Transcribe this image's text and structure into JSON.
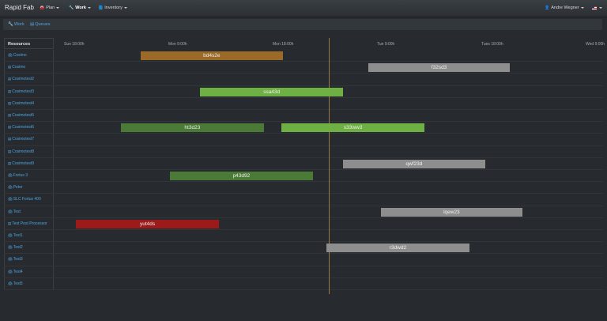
{
  "navbar": {
    "brand": "Rapid Fab",
    "items": [
      {
        "label": "Plan",
        "icon": "car-icon"
      },
      {
        "label": "Work",
        "icon": "wrench-icon"
      },
      {
        "label": "Inventory",
        "icon": "book-icon"
      }
    ],
    "user": "Andre Wegner"
  },
  "tabs": [
    {
      "label": "Work",
      "icon": "wrench-icon"
    },
    {
      "label": "Queues",
      "icon": "list-icon"
    }
  ],
  "gantt": {
    "resources_header": "Resources",
    "time_labels": [
      "Sun 18:00h",
      "Mon 9:00h",
      "Mon 18:00h",
      "Tue 9:00h",
      "Tues 18:00h",
      "Wed 9:00h"
    ],
    "resources": [
      {
        "label": "Cosimo",
        "type": "printer"
      },
      {
        "label": "Cosimo",
        "type": "list"
      },
      {
        "label": "Cosimotest2",
        "type": "list"
      },
      {
        "label": "Cosimotest3",
        "type": "list"
      },
      {
        "label": "Cosimotest4",
        "type": "list"
      },
      {
        "label": "Cosimotest5",
        "type": "list"
      },
      {
        "label": "Cosimotest6",
        "type": "list"
      },
      {
        "label": "Cosimotest7",
        "type": "list"
      },
      {
        "label": "Cosimotest8",
        "type": "list"
      },
      {
        "label": "Cosimotest9",
        "type": "list"
      },
      {
        "label": "Fortus 3",
        "type": "printer"
      },
      {
        "label": "Peter",
        "type": "printer"
      },
      {
        "label": "SLC Fortus 400",
        "type": "printer"
      },
      {
        "label": "Test",
        "type": "printer"
      },
      {
        "label": "Test Post Processor",
        "type": "list"
      },
      {
        "label": "Test1",
        "type": "printer"
      },
      {
        "label": "Test2",
        "type": "printer"
      },
      {
        "label": "Test3",
        "type": "printer"
      },
      {
        "label": "Test4",
        "type": "printer"
      },
      {
        "label": "Test5",
        "type": "printer"
      }
    ],
    "jobs": [
      {
        "label": "bd4s2e",
        "row": 0,
        "start": 0.72,
        "end": 2.08,
        "color": "#9a6a26"
      },
      {
        "label": "f32sd3",
        "row": 1,
        "start": 2.9,
        "end": 4.26,
        "color": "#8e8e8e"
      },
      {
        "label": "ssa43d",
        "row": 3,
        "start": 1.29,
        "end": 2.66,
        "color": "#6fb044"
      },
      {
        "label": "ht3d23",
        "row": 6,
        "start": 0.53,
        "end": 1.9,
        "color": "#4a7a35"
      },
      {
        "label": "s33ww3",
        "row": 6,
        "start": 2.07,
        "end": 3.44,
        "color": "#6fb044"
      },
      {
        "label": "qwf23d",
        "row": 9,
        "start": 2.66,
        "end": 4.02,
        "color": "#8e8e8e"
      },
      {
        "label": "p43d92",
        "row": 10,
        "start": 1.0,
        "end": 2.37,
        "color": "#4a7a35"
      },
      {
        "label": "lqew23",
        "row": 13,
        "start": 3.02,
        "end": 4.38,
        "color": "#8e8e8e"
      },
      {
        "label": "yut4ds",
        "row": 14,
        "start": 0.1,
        "end": 1.47,
        "color": "#9c1a1a"
      },
      {
        "label": "r3dwd2",
        "row": 16,
        "start": 2.5,
        "end": 3.87,
        "color": "#8e8e8e"
      }
    ]
  }
}
